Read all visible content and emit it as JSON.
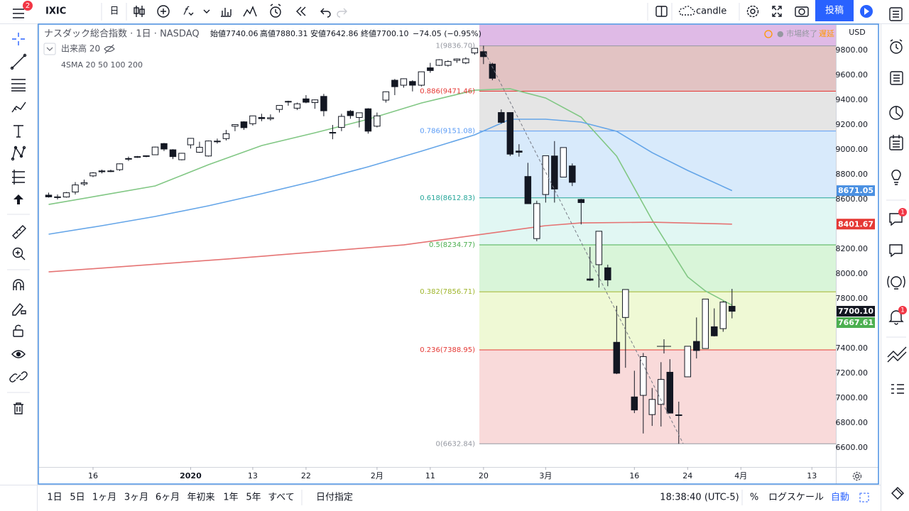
{
  "toolbar": {
    "symbol": "IXIC",
    "interval": "日",
    "chart_style": "candle",
    "publish": "投稿",
    "badge": "2"
  },
  "sidebar_badges": [
    "1",
    "1"
  ],
  "legend": {
    "title": "ナスダック総合指数 · 1日 · NASDAQ",
    "ohlc": [
      "始値7740.06",
      "高値7880.31",
      "安値7642.86",
      "終値7700.10"
    ],
    "change": "−74.05 (−0.95%)",
    "volume": "出来高 20",
    "sma": "4SMA 20 50 100 200",
    "market_status": "● 市場終了",
    "delay": "遅延"
  },
  "currency": "USD",
  "chart_data": {
    "type": "candlestick",
    "up_color": "#ffffff",
    "down_color": "#131722",
    "edge_color": "#131722",
    "grid": false,
    "open": [
      8635,
      8621,
      8620,
      8660,
      8725,
      8790,
      8830,
      8830,
      8840,
      8930,
      8940,
      8950,
      8960,
      9050,
      9000,
      8920,
      9040,
      8980,
      8950,
      9070,
      9090,
      9190,
      9225,
      9210,
      9260,
      9250,
      9325,
      9390,
      9335,
      9410,
      9380,
      9430,
      9140,
      9180,
      9310,
      9260,
      9330,
      9190,
      9400,
      9560,
      9520,
      9550,
      9520,
      9660,
      9680,
      9680,
      9720,
      9700,
      9780,
      9790,
      9690,
      9300,
      9300,
      8990,
      8785,
      8285,
      8640,
      8950,
      8780,
      8870,
      8600,
      7960,
      8075,
      8050,
      7450,
      7650,
      7010,
      7023,
      6868,
      6950,
      7209,
      6866,
      7172,
      7457,
      7400,
      7575,
      7560,
      7740.06
    ],
    "high": [
      8655,
      8640,
      8660,
      8740,
      8760,
      8820,
      8840,
      8840,
      8890,
      8945,
      8950,
      8955,
      9025,
      9055,
      9005,
      8975,
      9095,
      9065,
      9075,
      9090,
      9160,
      9205,
      9230,
      9275,
      9290,
      9285,
      9360,
      9395,
      9380,
      9440,
      9405,
      9450,
      9200,
      9290,
      9320,
      9300,
      9335,
      9300,
      9470,
      9570,
      9575,
      9560,
      9630,
      9700,
      9730,
      9720,
      9735,
      9745,
      9817,
      9838,
      9700,
      9325,
      9300,
      9045,
      8895,
      8590,
      8953,
      9070,
      9018,
      8890,
      8605,
      8217,
      8344,
      8075,
      7744,
      7875,
      7221,
      7364,
      7082,
      7290,
      7314,
      6972,
      7418,
      7650,
      7798,
      7723,
      7782,
      7880.31
    ],
    "low": [
      8615,
      8600,
      8615,
      8640,
      8710,
      8780,
      8810,
      8820,
      8830,
      8910,
      8935,
      8940,
      8960,
      8990,
      8925,
      8915,
      9010,
      8975,
      8945,
      9050,
      9075,
      9150,
      9160,
      9195,
      9230,
      9235,
      9300,
      9355,
      9320,
      9375,
      9330,
      9270,
      9085,
      9150,
      9250,
      9180,
      9130,
      9180,
      9380,
      9440,
      9500,
      9470,
      9510,
      9620,
      9675,
      9670,
      9700,
      9690,
      9765,
      9690,
      9560,
      9210,
      8950,
      8945,
      8565,
      8264,
      8575,
      8575,
      8780,
      8708,
      8399,
      7944,
      7891,
      7902,
      7194,
      7245,
      6880,
      6716,
      6777,
      6772,
      6879,
      6632.84,
      7170,
      7320,
      7400,
      7497,
      7535,
      7642.86
    ],
    "close": [
      8621,
      8616,
      8654,
      8717,
      8735,
      8814,
      8823,
      8827,
      8887,
      8924,
      8945,
      8952,
      9022,
      9006,
      8945,
      8972,
      9092,
      9020,
      9071,
      9068,
      9129,
      9203,
      9178,
      9273,
      9251,
      9258,
      9357,
      9388,
      9370,
      9383,
      9402,
      9314,
      9139,
      9269,
      9275,
      9298,
      9150,
      9273,
      9467,
      9508,
      9572,
      9520,
      9628,
      9638,
      9725,
      9711,
      9731,
      9732,
      9817,
      9750,
      9576,
      9221,
      8965,
      8980,
      8566,
      8567,
      8952,
      8684,
      9018,
      8738,
      8575,
      7950,
      8344,
      7952,
      7201,
      7875,
      6905,
      7335,
      6990,
      7151,
      6880,
      6861,
      7418,
      7384,
      7798,
      7502,
      7774,
      7700.1
    ],
    "xlim": [
      -1.08,
      88.7
    ],
    "xticks": [
      {
        "value": 5,
        "label": "16"
      },
      {
        "value": 16,
        "label": "2020"
      },
      {
        "value": 23,
        "label": "13"
      },
      {
        "value": 29,
        "label": "22"
      },
      {
        "value": 37,
        "label": "2月"
      },
      {
        "value": 43,
        "label": "11"
      },
      {
        "value": 49,
        "label": "20"
      },
      {
        "value": 56,
        "label": "3月"
      },
      {
        "value": 66,
        "label": "16"
      },
      {
        "value": 72,
        "label": "24"
      },
      {
        "value": 78,
        "label": "4月"
      },
      {
        "value": 86,
        "label": "13"
      }
    ],
    "ylim": [
      6446,
      10006
    ],
    "yticks": [
      {
        "value": 9800,
        "label": "9800.00"
      },
      {
        "value": 9600,
        "label": "9600.00"
      },
      {
        "value": 9400,
        "label": "9400.00"
      },
      {
        "value": 9200,
        "label": "9200.00"
      },
      {
        "value": 9000,
        "label": "9000.00"
      },
      {
        "value": 8800,
        "label": "8800.00"
      },
      {
        "value": 8600,
        "label": "8600.00"
      },
      {
        "value": 8200,
        "label": "8200.00"
      },
      {
        "value": 8000,
        "label": "8000.00"
      },
      {
        "value": 7800,
        "label": "7800.00"
      },
      {
        "value": 7400,
        "label": "7400.00"
      },
      {
        "value": 7200,
        "label": "7200.00"
      },
      {
        "value": 7000,
        "label": "7000.00"
      },
      {
        "value": 6800,
        "label": "6800.00"
      },
      {
        "value": 6600,
        "label": "6600.00"
      }
    ],
    "moving_averages": [
      {
        "color": "#81c784",
        "x": [
          0,
          6,
          12,
          18,
          24,
          30,
          36,
          42,
          48,
          52,
          56,
          60,
          64,
          68,
          72,
          74,
          77
        ],
        "values": [
          8560,
          8634,
          8709,
          8880,
          9034,
          9137,
          9246,
          9377,
          9480,
          9491,
          9417,
          9263,
          8949,
          8434,
          7977,
          7863,
          7749
        ]
      },
      {
        "color": "#64a5e8",
        "x": [
          0,
          6,
          12,
          18,
          24,
          30,
          36,
          42,
          48,
          52,
          56,
          60,
          64,
          68,
          72,
          77
        ],
        "values": [
          8320,
          8389,
          8463,
          8549,
          8646,
          8749,
          8863,
          8989,
          9120,
          9246,
          9246,
          9223,
          9149,
          8977,
          8834,
          8671.05
        ]
      },
      {
        "color": "#e57373",
        "x": [
          0,
          20,
          40,
          56,
          60,
          68,
          77
        ],
        "values": [
          8017,
          8120,
          8234,
          8389,
          8411,
          8417,
          8401.67
        ]
      }
    ],
    "fib_levels": [
      {
        "value": 9836.7,
        "label": "1(9836.70)",
        "color": "#9598a1",
        "fill": "rgba(178,96,96,0.38)"
      },
      {
        "value": 9471.46,
        "label": "0.886(9471.46)",
        "color": "#e53935",
        "fill": "rgba(180,180,180,0.35)"
      },
      {
        "value": 9151.08,
        "label": "0.786(9151.08)",
        "color": "#5b9cf6",
        "fill": "rgba(100,170,240,0.25)"
      },
      {
        "value": 8612.83,
        "label": "0.618(8612.83)",
        "color": "#26a69a",
        "fill": "rgba(120,220,200,0.22)"
      },
      {
        "value": 8234.77,
        "label": "0.5(8234.77)",
        "color": "#4caf50",
        "fill": "rgba(120,220,120,0.28)"
      },
      {
        "value": 7856.71,
        "label": "0.382(7856.71)",
        "color": "#9fb52b",
        "fill": "rgba(215,240,150,0.4)"
      },
      {
        "value": 7388.95,
        "label": "0.236(7388.95)",
        "color": "#e53935",
        "fill": "rgba(235,140,140,0.32)"
      },
      {
        "value": 6632.84,
        "label": "0(6632.84)",
        "color": "#9598a1",
        "fill": "none"
      }
    ],
    "price_tags": [
      {
        "value": 8671.05,
        "label": "8671.05",
        "color": "#4a90e2"
      },
      {
        "value": 8401.67,
        "label": "8401.67",
        "color": "#e53935"
      },
      {
        "value": 7700.1,
        "label": "7700.10",
        "color": "#131722"
      },
      {
        "value": 7667.61,
        "label": "7667.61",
        "color": "#4caf50"
      }
    ]
  },
  "bottom_bar": {
    "ranges": [
      "1日",
      "5日",
      "1ヶ月",
      "3ヶ月",
      "6ヶ月",
      "年初来",
      "1年",
      "5年",
      "すべて"
    ],
    "goto_date": "日付指定",
    "clock": "18:38:40 (UTC-5)",
    "percent": "%",
    "log": "ログスケール",
    "auto": "自動"
  }
}
